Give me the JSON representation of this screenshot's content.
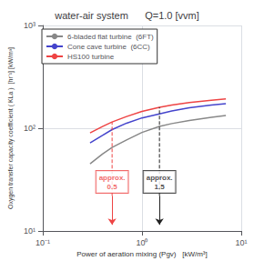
{
  "chart_data": {
    "type": "line",
    "title": "water-air system      Q=1.0 [vvm]",
    "xlabel": "Power of aeration mixing (Pgv)   [kW/m³]",
    "ylabel": "Oxygen transfer capacity coefficient ( KLa )  [hr⁻¹] [kW/m³]",
    "log": true,
    "xlim": [
      0.1,
      10
    ],
    "ylim": [
      10,
      1000
    ],
    "xticks": [
      {
        "value": 0.1,
        "label": "10⁻¹"
      },
      {
        "value": 1,
        "label": "10⁰"
      },
      {
        "value": 10,
        "label": "10¹"
      }
    ],
    "yticks": [
      {
        "value": 10,
        "label": "10¹"
      },
      {
        "value": 100,
        "label": "10²"
      },
      {
        "value": 1000,
        "label": "10³"
      }
    ],
    "grid": true,
    "legend": "upper left",
    "x": [
      0.3,
      0.4,
      0.5,
      0.7,
      1.0,
      1.5,
      2.0,
      3.0,
      5.0,
      7.0
    ],
    "series": [
      {
        "name": "6-bladed flat turbine  (6FT)",
        "color": "#888888",
        "values": [
          45,
          56,
          65,
          77,
          91,
          104,
          111,
          119,
          128,
          133
        ]
      },
      {
        "name": "Cone cave turbine  (6CC)",
        "color": "#4444cc",
        "values": [
          72,
          85,
          97,
          112,
          126,
          138,
          147,
          158,
          168,
          173
        ]
      },
      {
        "name": "HS100 turbine",
        "color": "#ee4444",
        "values": [
          90,
          104,
          115,
          130,
          146,
          160,
          168,
          178,
          187,
          193
        ]
      }
    ],
    "annotations": [
      {
        "text": "approx.\n0.5",
        "x": 0.5,
        "y": 30,
        "color": "#ee4444",
        "line_y": [
          22,
          115
        ],
        "arrow_y": [
          22,
          11.5
        ]
      },
      {
        "text": "approx.\n1.5",
        "x": 1.5,
        "y": 30,
        "color": "#222222",
        "line_y": [
          22,
          160
        ],
        "arrow_y": [
          22,
          11.5
        ]
      }
    ]
  }
}
